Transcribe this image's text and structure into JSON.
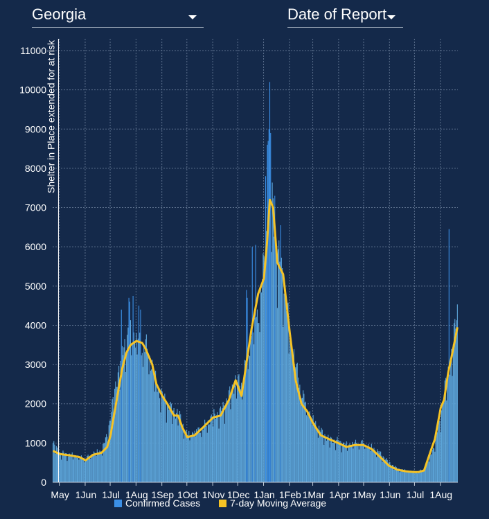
{
  "controls": {
    "state": "Georgia",
    "date_type": "Date of Report"
  },
  "colors": {
    "background": "#14294a",
    "bar": "#5da5d9",
    "bar_spike": "#3b8fe6",
    "line": "#f6c325",
    "grid": "#5b6f8c"
  },
  "chart_data": {
    "type": "bar",
    "ylim": [
      0,
      11300
    ],
    "y_ticks": [
      0,
      1000,
      2000,
      3000,
      4000,
      5000,
      6000,
      7000,
      8000,
      9000,
      10000,
      11000
    ],
    "x_range": [
      "2020-04-23",
      "2021-08-21"
    ],
    "x_ticks": [
      {
        "date": "2020-05-01",
        "label": "May"
      },
      {
        "date": "2020-06-01",
        "label": "1Jun"
      },
      {
        "date": "2020-07-01",
        "label": "1Jul"
      },
      {
        "date": "2020-08-01",
        "label": "1Aug"
      },
      {
        "date": "2020-09-01",
        "label": "1Sep"
      },
      {
        "date": "2020-10-01",
        "label": "1Oct"
      },
      {
        "date": "2020-11-01",
        "label": "1Nov"
      },
      {
        "date": "2020-12-01",
        "label": "1Dec"
      },
      {
        "date": "2021-01-01",
        "label": "1Jan"
      },
      {
        "date": "2021-02-01",
        "label": "1Feb"
      },
      {
        "date": "2021-03-01",
        "label": "1Mar"
      },
      {
        "date": "2021-04-01",
        "label": "1Apr"
      },
      {
        "date": "2021-05-01",
        "label": "1May"
      },
      {
        "date": "2021-06-01",
        "label": "1Jun"
      },
      {
        "date": "2021-07-01",
        "label": "1Jul"
      },
      {
        "date": "2021-08-01",
        "label": "1Aug"
      }
    ],
    "annotation": {
      "date": "2020-04-30",
      "label": "Shelter in Place extended for at risk"
    },
    "grid": true,
    "legend_position": "bottom",
    "series": [
      {
        "name": "Confirmed Cases",
        "type": "bar",
        "anchors": [
          [
            "2020-04-23",
            1000
          ],
          [
            "2020-05-01",
            750
          ],
          [
            "2020-05-15",
            700
          ],
          [
            "2020-05-25",
            650
          ],
          [
            "2020-06-01",
            600
          ],
          [
            "2020-06-10",
            750
          ],
          [
            "2020-06-20",
            800
          ],
          [
            "2020-06-27",
            1200
          ],
          [
            "2020-07-01",
            1700
          ],
          [
            "2020-07-05",
            2200
          ],
          [
            "2020-07-10",
            2800
          ],
          [
            "2020-07-15",
            3300
          ],
          [
            "2020-07-20",
            3700
          ],
          [
            "2020-07-25",
            3800
          ],
          [
            "2020-08-01",
            3700
          ],
          [
            "2020-08-08",
            3500
          ],
          [
            "2020-08-12",
            3500
          ],
          [
            "2020-08-20",
            3000
          ],
          [
            "2020-08-25",
            2500
          ],
          [
            "2020-09-01",
            2200
          ],
          [
            "2020-09-07",
            2000
          ],
          [
            "2020-09-15",
            1800
          ],
          [
            "2020-09-20",
            1800
          ],
          [
            "2020-09-25",
            1500
          ],
          [
            "2020-10-01",
            1200
          ],
          [
            "2020-10-10",
            1300
          ],
          [
            "2020-10-20",
            1400
          ],
          [
            "2020-11-01",
            1700
          ],
          [
            "2020-11-10",
            1800
          ],
          [
            "2020-11-20",
            2200
          ],
          [
            "2020-11-28",
            2600
          ],
          [
            "2020-12-05",
            2500
          ],
          [
            "2020-12-10",
            3000
          ],
          [
            "2020-12-17",
            3700
          ],
          [
            "2020-12-25",
            4300
          ],
          [
            "2021-01-01",
            5500
          ],
          [
            "2021-01-05",
            6500
          ],
          [
            "2021-01-08",
            7300
          ],
          [
            "2021-01-12",
            7000
          ],
          [
            "2021-01-17",
            5800
          ],
          [
            "2021-01-24",
            5300
          ],
          [
            "2021-02-01",
            3800
          ],
          [
            "2021-02-08",
            3000
          ],
          [
            "2021-02-15",
            2300
          ],
          [
            "2021-02-22",
            1900
          ],
          [
            "2021-03-01",
            1600
          ],
          [
            "2021-03-10",
            1300
          ],
          [
            "2021-03-20",
            1100
          ],
          [
            "2021-03-31",
            1050
          ],
          [
            "2021-04-10",
            950
          ],
          [
            "2021-04-20",
            1000
          ],
          [
            "2021-04-30",
            1000
          ],
          [
            "2021-05-10",
            900
          ],
          [
            "2021-05-20",
            750
          ],
          [
            "2021-05-31",
            500
          ],
          [
            "2021-06-10",
            350
          ],
          [
            "2021-06-20",
            300
          ],
          [
            "2021-06-30",
            280
          ],
          [
            "2021-07-05",
            270
          ],
          [
            "2021-07-12",
            330
          ],
          [
            "2021-07-20",
            700
          ],
          [
            "2021-07-25",
            1000
          ],
          [
            "2021-08-01",
            1700
          ],
          [
            "2021-08-05",
            2300
          ],
          [
            "2021-08-10",
            2800
          ],
          [
            "2021-08-15",
            3400
          ],
          [
            "2021-08-21",
            4400
          ]
        ],
        "spikes": [
          [
            "2020-07-14",
            4400
          ],
          [
            "2020-07-23",
            4700
          ],
          [
            "2020-07-24",
            4600
          ],
          [
            "2020-07-28",
            4750
          ],
          [
            "2020-08-04",
            4500
          ],
          [
            "2020-08-06",
            4400
          ],
          [
            "2020-12-11",
            4900
          ],
          [
            "2020-12-12",
            4700
          ],
          [
            "2020-12-18",
            6000
          ],
          [
            "2020-12-22",
            6050
          ],
          [
            "2021-01-03",
            7800
          ],
          [
            "2021-01-05",
            8600
          ],
          [
            "2021-01-06",
            8700
          ],
          [
            "2021-01-07",
            9000
          ],
          [
            "2021-01-08",
            10200
          ],
          [
            "2021-01-09",
            8900
          ],
          [
            "2021-01-14",
            7300
          ],
          [
            "2021-01-21",
            6550
          ],
          [
            "2021-08-11",
            6450
          ]
        ]
      },
      {
        "name": "7-day Moving Average",
        "type": "line",
        "anchors": [
          [
            "2020-04-23",
            800
          ],
          [
            "2020-05-01",
            720
          ],
          [
            "2020-05-15",
            680
          ],
          [
            "2020-05-25",
            640
          ],
          [
            "2020-06-01",
            560
          ],
          [
            "2020-06-10",
            700
          ],
          [
            "2020-06-20",
            750
          ],
          [
            "2020-06-27",
            900
          ],
          [
            "2020-07-01",
            1200
          ],
          [
            "2020-07-05",
            1700
          ],
          [
            "2020-07-10",
            2300
          ],
          [
            "2020-07-15",
            2900
          ],
          [
            "2020-07-20",
            3300
          ],
          [
            "2020-07-25",
            3500
          ],
          [
            "2020-08-01",
            3600
          ],
          [
            "2020-08-08",
            3550
          ],
          [
            "2020-08-12",
            3400
          ],
          [
            "2020-08-20",
            3000
          ],
          [
            "2020-08-25",
            2500
          ],
          [
            "2020-09-01",
            2200
          ],
          [
            "2020-09-07",
            2000
          ],
          [
            "2020-09-15",
            1700
          ],
          [
            "2020-09-20",
            1700
          ],
          [
            "2020-09-25",
            1400
          ],
          [
            "2020-10-01",
            1150
          ],
          [
            "2020-10-10",
            1200
          ],
          [
            "2020-10-20",
            1400
          ],
          [
            "2020-11-01",
            1650
          ],
          [
            "2020-11-10",
            1700
          ],
          [
            "2020-11-20",
            2100
          ],
          [
            "2020-11-28",
            2600
          ],
          [
            "2020-12-05",
            2200
          ],
          [
            "2020-12-10",
            2900
          ],
          [
            "2020-12-17",
            3900
          ],
          [
            "2020-12-25",
            4800
          ],
          [
            "2021-01-01",
            5200
          ],
          [
            "2021-01-05",
            6200
          ],
          [
            "2021-01-08",
            7200
          ],
          [
            "2021-01-12",
            7000
          ],
          [
            "2021-01-17",
            5600
          ],
          [
            "2021-01-24",
            5300
          ],
          [
            "2021-02-01",
            3800
          ],
          [
            "2021-02-08",
            2600
          ],
          [
            "2021-02-15",
            2000
          ],
          [
            "2021-02-22",
            1800
          ],
          [
            "2021-03-01",
            1500
          ],
          [
            "2021-03-10",
            1200
          ],
          [
            "2021-03-20",
            1100
          ],
          [
            "2021-03-31",
            1000
          ],
          [
            "2021-04-10",
            900
          ],
          [
            "2021-04-20",
            950
          ],
          [
            "2021-04-30",
            950
          ],
          [
            "2021-05-10",
            850
          ],
          [
            "2021-05-20",
            650
          ],
          [
            "2021-05-31",
            420
          ],
          [
            "2021-06-10",
            320
          ],
          [
            "2021-06-20",
            280
          ],
          [
            "2021-06-30",
            260
          ],
          [
            "2021-07-05",
            260
          ],
          [
            "2021-07-12",
            300
          ],
          [
            "2021-07-20",
            800
          ],
          [
            "2021-07-25",
            1100
          ],
          [
            "2021-08-01",
            1900
          ],
          [
            "2021-08-05",
            2100
          ],
          [
            "2021-08-10",
            2800
          ],
          [
            "2021-08-15",
            3300
          ],
          [
            "2021-08-21",
            3950
          ]
        ]
      }
    ]
  }
}
